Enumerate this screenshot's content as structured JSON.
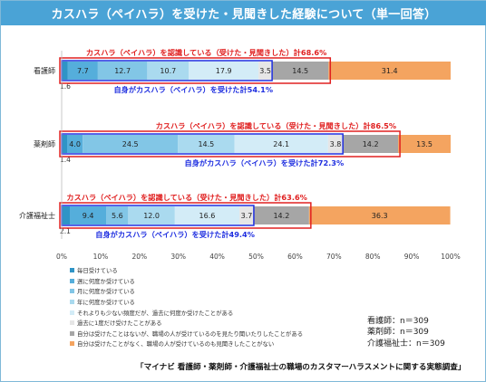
{
  "title": "カスハラ（ペイハラ）を受けた・見聞きした経験について（単一回答）",
  "chart_data": {
    "type": "bar",
    "orientation": "horizontal",
    "stacked": true,
    "categories": [
      "看護師",
      "薬剤師",
      "介護福祉士"
    ],
    "series": [
      {
        "name": "毎日受けている",
        "color": "#2f94c6",
        "values": [
          1.6,
          1.4,
          2.1
        ]
      },
      {
        "name": "週に何度か受けている",
        "color": "#55aedb",
        "values": [
          7.7,
          4.0,
          9.4
        ]
      },
      {
        "name": "月に何度か受けている",
        "color": "#82c6e6",
        "values": [
          12.7,
          24.5,
          5.6
        ]
      },
      {
        "name": "年に何度か受けている",
        "color": "#aadaef",
        "values": [
          10.7,
          14.5,
          12.0
        ]
      },
      {
        "name": "それよりも少ない頻度だが、過去に何度か受けたことがある",
        "color": "#d3ecf7",
        "values": [
          17.9,
          24.1,
          16.6
        ]
      },
      {
        "name": "過去に1度だけ受けたことがある",
        "color": "#e6e6e6",
        "values": [
          3.5,
          3.8,
          3.7
        ]
      },
      {
        "name": "自分は受けたことはないが、職場の人が受けているのを見たり聞いたりしたことがある",
        "color": "#a6a6a6",
        "values": [
          14.5,
          14.2,
          14.2
        ]
      },
      {
        "name": "自分は受けたことがなく、職場の人が受けているのも見聞きしたことがない",
        "color": "#f4a460",
        "values": [
          31.4,
          13.5,
          36.3
        ]
      }
    ],
    "value_labels": [
      [
        "1.6",
        "7.7",
        "12.7",
        "10.7",
        "17.9",
        "3.5",
        "14.5",
        "31.4"
      ],
      [
        "1.4",
        "4.0",
        "24.5",
        "14.5",
        "24.1",
        "3.8",
        "14.2",
        "13.5"
      ],
      [
        "2.1",
        "9.4",
        "5.6",
        "12.0",
        "16.6",
        "3.7",
        "14.2",
        "36.3"
      ]
    ],
    "xlim": [
      0,
      100
    ],
    "xticks": [
      "0%",
      "10%",
      "20%",
      "30%",
      "40%",
      "50%",
      "60%",
      "70%",
      "80%",
      "90%",
      "100%"
    ],
    "legend_position": "bottom-left",
    "grid": false,
    "annotations": [
      {
        "text": "カスハラ（ペイハラ）を認識している（受けた・見聞きした）計68.6%",
        "total": 68.6,
        "kind": "recognized",
        "color": "#e02020"
      },
      {
        "text": "自身がカスハラ（ペイハラ）を受けた計54.1%",
        "total": 54.1,
        "kind": "received",
        "color": "#1f2fe0"
      },
      {
        "text": "カスハラ（ペイハラ）を認識している（受けた・見聞きした）計86.5%",
        "total": 86.5,
        "kind": "recognized",
        "color": "#e02020"
      },
      {
        "text": "自身がカスハラ（ペイハラ）を受けた計72.3%",
        "total": 72.3,
        "kind": "received",
        "color": "#1f2fe0"
      },
      {
        "text": "カスハラ（ペイハラ）を認識している（受けた・見聞きした）計63.6%",
        "total": 63.6,
        "kind": "recognized",
        "color": "#e02020"
      },
      {
        "text": "自身がカスハラ（ペイハラ）を受けた計49.4%",
        "total": 49.4,
        "kind": "received",
        "color": "#1f2fe0"
      }
    ]
  },
  "sample_sizes": [
    "看護師：n＝309",
    "薬剤師：n＝309",
    "介護福祉士：n＝309"
  ],
  "source": "「マイナビ 看護師・薬剤師・介護福祉士の職場のカスタマーハラスメントに関する実態調査」"
}
